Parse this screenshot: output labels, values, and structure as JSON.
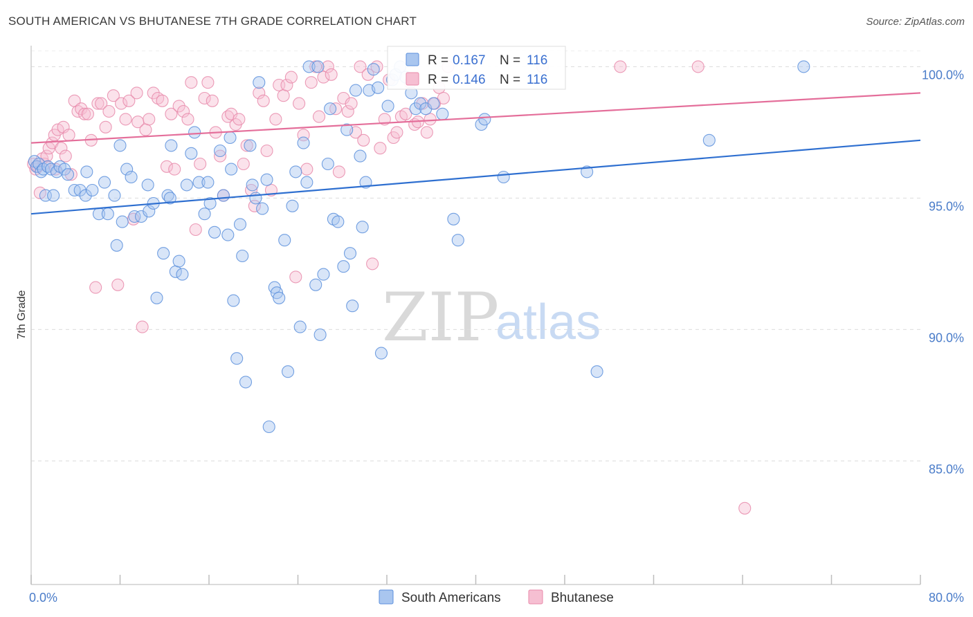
{
  "header": {
    "title": "SOUTH AMERICAN VS BHUTANESE 7TH GRADE CORRELATION CHART",
    "source": "Source: ZipAtlas.com"
  },
  "watermark": {
    "zip": "ZIP",
    "atlas": "atlas"
  },
  "colors": {
    "blue_fill": "#a9c6ef",
    "blue_stroke": "#5b8fdc",
    "blue_line": "#2e6fd0",
    "pink_fill": "#f6bfd2",
    "pink_stroke": "#e88aaa",
    "pink_line": "#e46e9a",
    "tick_text": "#4a7cc9",
    "grid": "#dcdcdc"
  },
  "chart_data": {
    "type": "scatter",
    "title": "SOUTH AMERICAN VS BHUTANESE 7TH GRADE CORRELATION CHART",
    "xlabel": "",
    "ylabel": "7th Grade",
    "xlim": [
      0,
      80
    ],
    "ylim": [
      80.3,
      100.8
    ],
    "x_tick_labels": [
      {
        "value": 0,
        "label": "0.0%"
      },
      {
        "value": 80,
        "label": "80.0%"
      }
    ],
    "x_minor_ticks": [
      0,
      8,
      16,
      24,
      32,
      40,
      48,
      56,
      64,
      72,
      80
    ],
    "y_ticks": [
      {
        "value": 100,
        "label": "100.0%"
      },
      {
        "value": 95,
        "label": "95.0%"
      },
      {
        "value": 90,
        "label": "90.0%"
      },
      {
        "value": 85,
        "label": "85.0%"
      }
    ],
    "grid": "horizontal dashed",
    "legend": {
      "placement": "top-center",
      "entries": [
        {
          "series": "South Americans",
          "r_label": "R =",
          "r_value": "0.167",
          "n_label": "N =",
          "n_value": "116"
        },
        {
          "series": "Bhutanese",
          "r_label": "R =",
          "r_value": "0.146",
          "n_label": "N =",
          "n_value": "116"
        }
      ]
    },
    "series": [
      {
        "name": "South Americans",
        "color": "blue",
        "trend": {
          "x": [
            0,
            80
          ],
          "y": [
            94.4,
            97.2
          ]
        },
        "points": [
          [
            0.3,
            96.4
          ],
          [
            0.5,
            96.2
          ],
          [
            0.7,
            96.3
          ],
          [
            0.9,
            96.0
          ],
          [
            1.1,
            96.1
          ],
          [
            1.3,
            95.1
          ],
          [
            1.5,
            96.2
          ],
          [
            1.8,
            96.1
          ],
          [
            2.0,
            95.1
          ],
          [
            2.3,
            96.0
          ],
          [
            2.6,
            96.2
          ],
          [
            3.0,
            96.1
          ],
          [
            3.3,
            95.9
          ],
          [
            3.9,
            95.3
          ],
          [
            4.4,
            95.3
          ],
          [
            4.9,
            95.1
          ],
          [
            5.5,
            95.3
          ],
          [
            6.1,
            94.4
          ],
          [
            6.6,
            95.6
          ],
          [
            6.9,
            94.4
          ],
          [
            7.5,
            95.1
          ],
          [
            7.7,
            93.2
          ],
          [
            8.2,
            94.1
          ],
          [
            8.6,
            96.1
          ],
          [
            9.0,
            95.8
          ],
          [
            9.3,
            94.3
          ],
          [
            9.9,
            94.3
          ],
          [
            10.5,
            95.5
          ],
          [
            10.6,
            94.5
          ],
          [
            11.0,
            94.8
          ],
          [
            11.3,
            91.2
          ],
          [
            11.9,
            92.9
          ],
          [
            12.3,
            95.1
          ],
          [
            12.5,
            95.0
          ],
          [
            12.6,
            97.0
          ],
          [
            13.0,
            92.2
          ],
          [
            13.3,
            92.6
          ],
          [
            13.6,
            92.1
          ],
          [
            14.0,
            95.5
          ],
          [
            14.4,
            96.7
          ],
          [
            14.7,
            97.5
          ],
          [
            15.1,
            95.6
          ],
          [
            15.6,
            94.4
          ],
          [
            15.9,
            95.6
          ],
          [
            16.1,
            94.8
          ],
          [
            16.5,
            93.7
          ],
          [
            17.0,
            96.8
          ],
          [
            17.3,
            95.1
          ],
          [
            17.7,
            93.6
          ],
          [
            17.9,
            97.3
          ],
          [
            18.0,
            96.1
          ],
          [
            18.2,
            91.1
          ],
          [
            18.5,
            88.9
          ],
          [
            18.8,
            94.0
          ],
          [
            19.0,
            92.8
          ],
          [
            19.3,
            88.0
          ],
          [
            19.7,
            97.0
          ],
          [
            19.9,
            95.5
          ],
          [
            20.2,
            95.0
          ],
          [
            20.5,
            99.4
          ],
          [
            20.8,
            94.6
          ],
          [
            21.2,
            95.7
          ],
          [
            21.4,
            86.3
          ],
          [
            21.9,
            91.6
          ],
          [
            22.1,
            91.4
          ],
          [
            22.3,
            91.2
          ],
          [
            22.8,
            93.4
          ],
          [
            23.1,
            88.4
          ],
          [
            23.5,
            94.7
          ],
          [
            23.8,
            96.0
          ],
          [
            24.2,
            90.1
          ],
          [
            24.5,
            97.1
          ],
          [
            24.8,
            95.6
          ],
          [
            25.0,
            100.0
          ],
          [
            25.6,
            91.7
          ],
          [
            25.8,
            100.0
          ],
          [
            26.0,
            89.8
          ],
          [
            26.3,
            92.1
          ],
          [
            26.7,
            96.3
          ],
          [
            26.9,
            98.4
          ],
          [
            27.2,
            94.2
          ],
          [
            27.6,
            94.1
          ],
          [
            28.1,
            92.4
          ],
          [
            28.4,
            97.6
          ],
          [
            28.7,
            92.9
          ],
          [
            28.9,
            90.9
          ],
          [
            29.2,
            99.1
          ],
          [
            29.6,
            96.6
          ],
          [
            29.8,
            93.9
          ],
          [
            30.1,
            95.6
          ],
          [
            30.4,
            99.1
          ],
          [
            30.8,
            99.9
          ],
          [
            31.2,
            99.2
          ],
          [
            31.5,
            89.1
          ],
          [
            32.1,
            98.5
          ],
          [
            32.5,
            99.5
          ],
          [
            32.8,
            99.7
          ],
          [
            33.2,
            100.0
          ],
          [
            33.7,
            99.6
          ],
          [
            34.2,
            99.0
          ],
          [
            34.6,
            98.4
          ],
          [
            35.0,
            98.6
          ],
          [
            35.5,
            98.4
          ],
          [
            36.2,
            98.6
          ],
          [
            37.0,
            98.2
          ],
          [
            38.0,
            94.2
          ],
          [
            38.4,
            93.4
          ],
          [
            40.5,
            97.8
          ],
          [
            40.8,
            98.0
          ],
          [
            42.5,
            95.8
          ],
          [
            50.0,
            96.0
          ],
          [
            50.9,
            88.4
          ],
          [
            61.0,
            97.2
          ],
          [
            69.5,
            100.0
          ],
          [
            5.0,
            96.0
          ],
          [
            8.0,
            97.0
          ]
        ]
      },
      {
        "name": "Bhutanese",
        "color": "pink",
        "trend": {
          "x": [
            0,
            80
          ],
          "y": [
            97.1,
            99.0
          ]
        },
        "points": [
          [
            0.2,
            96.3
          ],
          [
            0.4,
            96.1
          ],
          [
            0.6,
            96.2
          ],
          [
            0.8,
            95.2
          ],
          [
            1.0,
            96.5
          ],
          [
            1.2,
            96.3
          ],
          [
            1.4,
            96.6
          ],
          [
            1.6,
            96.9
          ],
          [
            1.9,
            97.1
          ],
          [
            2.1,
            97.4
          ],
          [
            2.4,
            97.6
          ],
          [
            2.7,
            96.9
          ],
          [
            2.9,
            97.7
          ],
          [
            3.1,
            96.6
          ],
          [
            3.4,
            97.4
          ],
          [
            3.6,
            95.9
          ],
          [
            3.9,
            98.7
          ],
          [
            4.2,
            98.3
          ],
          [
            4.5,
            98.4
          ],
          [
            4.8,
            98.2
          ],
          [
            5.1,
            98.2
          ],
          [
            5.4,
            97.2
          ],
          [
            5.8,
            91.6
          ],
          [
            6.0,
            98.6
          ],
          [
            6.3,
            98.6
          ],
          [
            6.7,
            97.7
          ],
          [
            7.0,
            98.3
          ],
          [
            7.4,
            98.9
          ],
          [
            7.8,
            91.7
          ],
          [
            8.1,
            98.6
          ],
          [
            8.5,
            98.0
          ],
          [
            8.8,
            98.7
          ],
          [
            9.2,
            94.2
          ],
          [
            9.6,
            97.9
          ],
          [
            10.0,
            90.1
          ],
          [
            10.3,
            97.6
          ],
          [
            10.6,
            98.0
          ],
          [
            11.0,
            99.0
          ],
          [
            11.4,
            98.8
          ],
          [
            11.8,
            98.7
          ],
          [
            12.2,
            96.2
          ],
          [
            12.6,
            98.2
          ],
          [
            12.9,
            96.1
          ],
          [
            13.3,
            98.5
          ],
          [
            13.7,
            98.3
          ],
          [
            14.1,
            98.0
          ],
          [
            14.4,
            99.4
          ],
          [
            14.8,
            93.8
          ],
          [
            15.2,
            96.3
          ],
          [
            15.6,
            98.8
          ],
          [
            15.9,
            99.4
          ],
          [
            16.3,
            98.7
          ],
          [
            16.6,
            97.5
          ],
          [
            17.0,
            96.6
          ],
          [
            17.3,
            95.1
          ],
          [
            17.7,
            98.1
          ],
          [
            18.0,
            98.2
          ],
          [
            18.4,
            97.8
          ],
          [
            18.7,
            98.0
          ],
          [
            19.1,
            96.3
          ],
          [
            19.4,
            97.0
          ],
          [
            19.8,
            95.3
          ],
          [
            20.1,
            94.7
          ],
          [
            20.5,
            99.0
          ],
          [
            20.9,
            98.7
          ],
          [
            21.2,
            96.8
          ],
          [
            21.6,
            95.3
          ],
          [
            22.0,
            98.0
          ],
          [
            22.3,
            99.3
          ],
          [
            22.7,
            98.9
          ],
          [
            23.0,
            99.3
          ],
          [
            23.4,
            99.6
          ],
          [
            23.8,
            92.0
          ],
          [
            24.1,
            98.6
          ],
          [
            24.5,
            97.4
          ],
          [
            24.8,
            96.1
          ],
          [
            25.2,
            99.4
          ],
          [
            25.6,
            100.0
          ],
          [
            25.9,
            98.1
          ],
          [
            26.3,
            99.6
          ],
          [
            26.7,
            100.0
          ],
          [
            27.0,
            99.7
          ],
          [
            27.4,
            98.4
          ],
          [
            27.7,
            96.0
          ],
          [
            28.1,
            98.8
          ],
          [
            28.5,
            98.3
          ],
          [
            28.8,
            98.6
          ],
          [
            29.2,
            97.5
          ],
          [
            29.6,
            100.0
          ],
          [
            29.9,
            97.2
          ],
          [
            30.3,
            99.7
          ],
          [
            30.7,
            92.5
          ],
          [
            31.1,
            100.0
          ],
          [
            31.4,
            96.9
          ],
          [
            31.8,
            98.0
          ],
          [
            32.2,
            99.5
          ],
          [
            32.6,
            97.3
          ],
          [
            32.9,
            97.5
          ],
          [
            33.3,
            98.1
          ],
          [
            33.7,
            98.2
          ],
          [
            34.1,
            99.4
          ],
          [
            34.5,
            97.8
          ],
          [
            34.8,
            97.9
          ],
          [
            35.2,
            98.6
          ],
          [
            35.6,
            97.5
          ],
          [
            35.9,
            98.0
          ],
          [
            36.3,
            98.6
          ],
          [
            36.7,
            99.2
          ],
          [
            37.1,
            98.8
          ],
          [
            37.5,
            100.0
          ],
          [
            46.0,
            100.0
          ],
          [
            53.0,
            100.0
          ],
          [
            60.0,
            100.0
          ],
          [
            64.2,
            83.2
          ],
          [
            2.2,
            96.1
          ],
          [
            9.5,
            99.0
          ]
        ]
      }
    ]
  },
  "bottom_legend": [
    {
      "label": "South Americans",
      "color": "blue"
    },
    {
      "label": "Bhutanese",
      "color": "pink"
    }
  ]
}
